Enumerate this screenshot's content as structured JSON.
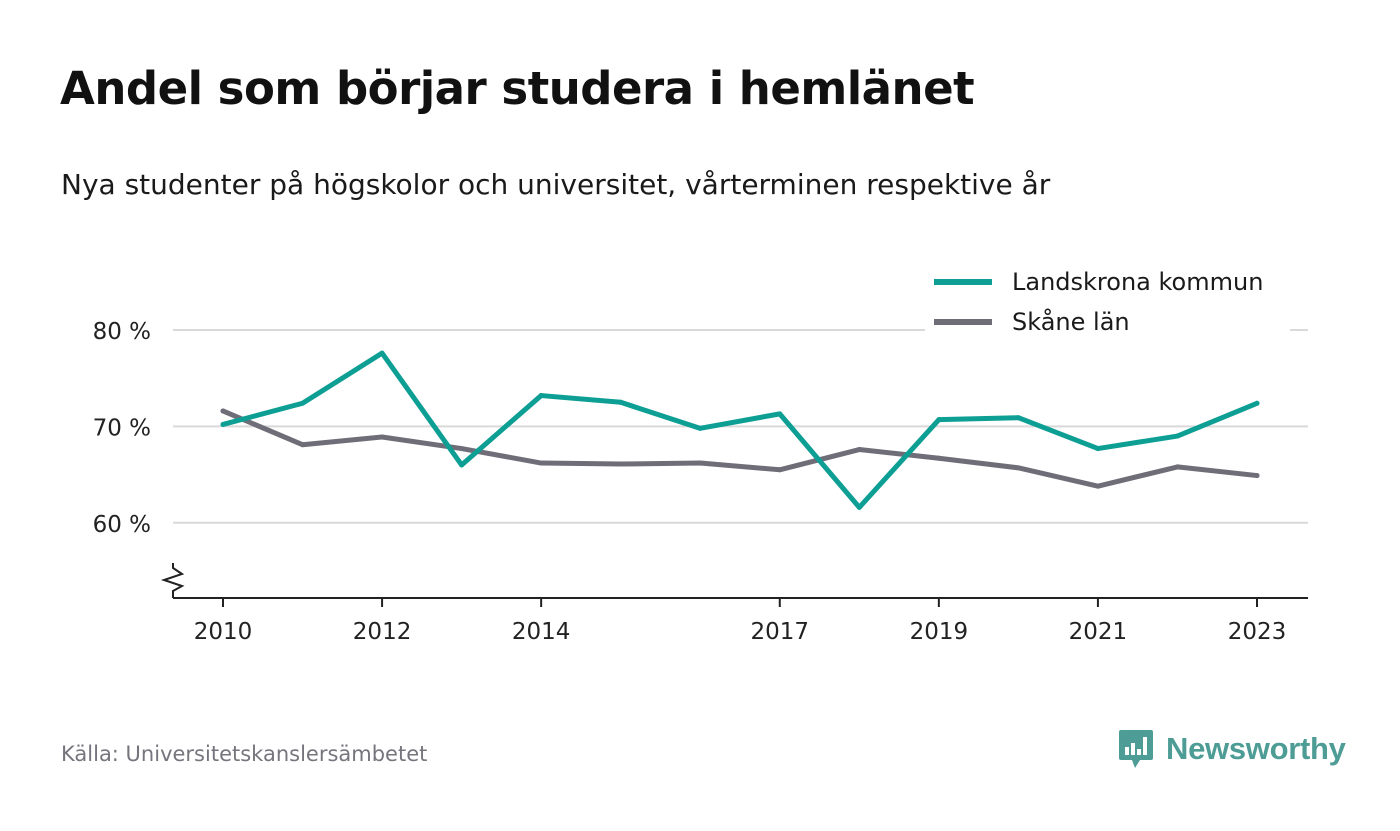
{
  "title": "Andel som börjar studera i hemlänet",
  "subtitle": "Nya studenter på högskolor och universitet, vårterminen respektive år",
  "source": "Källa: Universitetskanslersämbetet",
  "brand": {
    "name": "Newsworthy",
    "icon": "newsworthy-logo-icon",
    "color": "#4d9c95"
  },
  "chart_data": {
    "type": "line",
    "title": "Andel som börjar studera i hemlänet",
    "subtitle": "Nya studenter på högskolor och universitet, vårterminen respektive år",
    "x": [
      2010,
      2011,
      2012,
      2013,
      2014,
      2015,
      2016,
      2017,
      2018,
      2019,
      2020,
      2021,
      2022,
      2023
    ],
    "x_ticks": [
      "2010",
      "2012",
      "2014",
      "2017",
      "2019",
      "2021",
      "2023"
    ],
    "y_ticks": [
      {
        "value": 60,
        "label": "60 %"
      },
      {
        "value": 70,
        "label": "70 %"
      },
      {
        "value": 80,
        "label": "80 %"
      }
    ],
    "ylim": [
      52.2,
      80
    ],
    "y_axis_break": true,
    "grid": true,
    "legend": "top-right",
    "series": [
      {
        "name": "Landskrona kommun",
        "color": "#0d9e94",
        "values": [
          70.2,
          72.4,
          77.6,
          66.0,
          73.2,
          72.5,
          69.8,
          71.3,
          61.6,
          70.7,
          70.9,
          67.7,
          69.0,
          72.4
        ]
      },
      {
        "name": "Skåne län",
        "color": "#6f6e78",
        "values": [
          71.6,
          68.1,
          68.9,
          67.7,
          66.2,
          66.1,
          66.2,
          65.5,
          67.6,
          66.7,
          65.7,
          63.8,
          65.8,
          64.9
        ]
      }
    ]
  }
}
